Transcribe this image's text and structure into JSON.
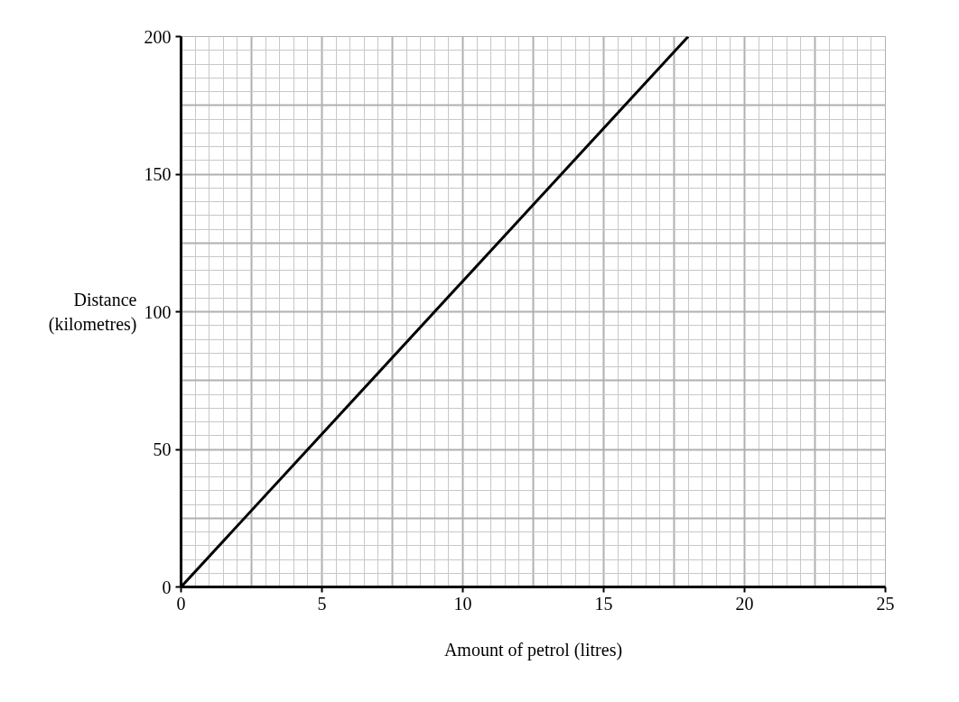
{
  "chart_data": {
    "type": "line",
    "xlabel": "Amount of petrol (litres)",
    "ylabel": "Distance\n(kilometres)",
    "x": [
      0,
      18
    ],
    "series": [
      {
        "color": "#000000",
        "values": [
          0,
          200
        ]
      }
    ],
    "xlim": [
      0,
      25
    ],
    "ylim": [
      0,
      200
    ],
    "xticks": [
      0,
      5,
      10,
      15,
      20,
      25
    ],
    "yticks": [
      0,
      50,
      100,
      150,
      200
    ],
    "grid": true,
    "marker": "none",
    "line_style": "solid"
  }
}
